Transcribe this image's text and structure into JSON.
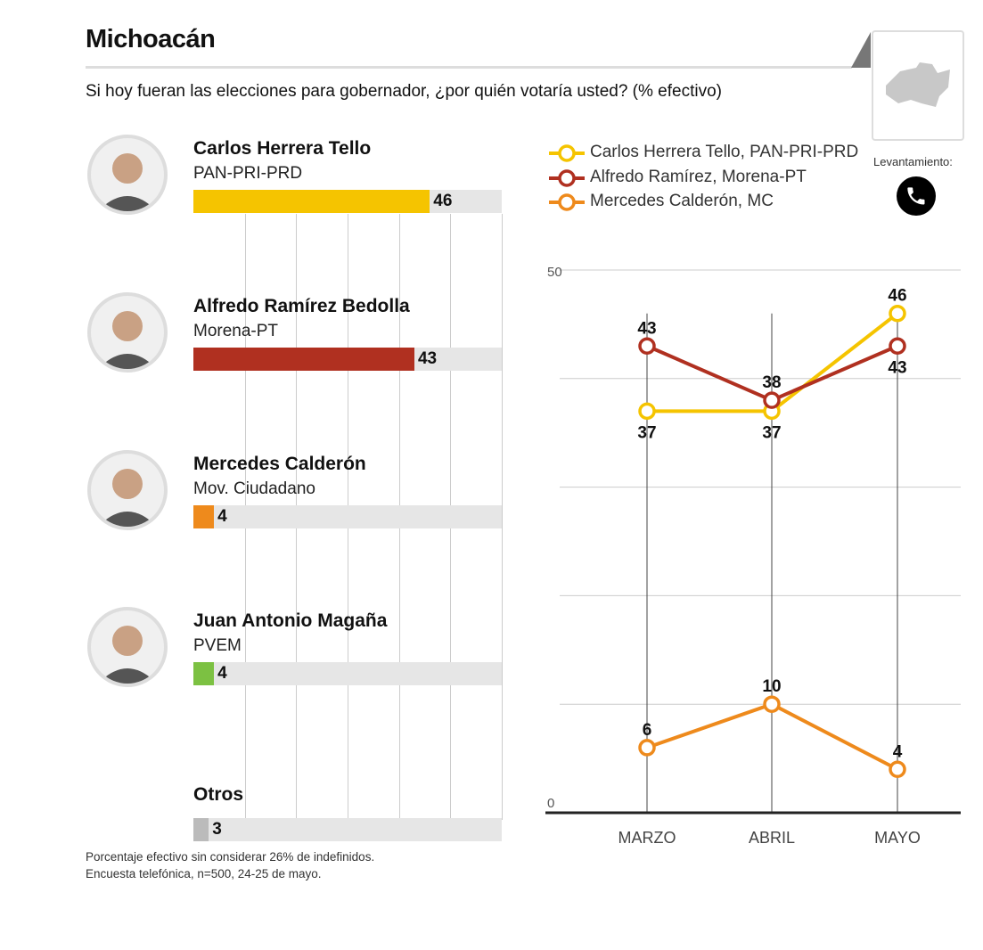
{
  "header": {
    "title": "Michoacán",
    "subtitle": "Si hoy fueran las elecciones para gobernador, ¿por quién votaría usted? (% efectivo)",
    "map_icon": "michoacan-map-icon"
  },
  "colors": {
    "herrera": "#f5c400",
    "ramirez": "#b03020",
    "calderon": "#ee8a1c",
    "magana": "#7cc142",
    "otros": "#bbbbbb",
    "track": "#e6e6e6"
  },
  "chart_data": [
    {
      "type": "bar",
      "orientation": "horizontal",
      "xlim": [
        0,
        60
      ],
      "grid": true,
      "categories": [
        {
          "name": "Carlos Herrera Tello",
          "party": "PAN-PRI-PRD",
          "value": 46,
          "color": "#f5c400"
        },
        {
          "name": "Alfredo Ramírez Bedolla",
          "party": "Morena-PT",
          "value": 43,
          "color": "#b03020"
        },
        {
          "name": "Mercedes Calderón",
          "party": "Mov. Ciudadano",
          "value": 4,
          "color": "#ee8a1c"
        },
        {
          "name": "Juan Antonio Magaña",
          "party": "PVEM",
          "value": 4,
          "color": "#7cc142"
        },
        {
          "name": "Otros",
          "party": "",
          "value": 3,
          "color": "#bbbbbb"
        }
      ]
    },
    {
      "type": "line",
      "categories": [
        "MARZO",
        "ABRIL",
        "MAYO"
      ],
      "ylim": [
        0,
        50
      ],
      "yticks": [
        "0",
        "50"
      ],
      "grid": true,
      "legend": "top",
      "series": [
        {
          "name": "Carlos Herrera Tello, PAN-PRI-PRD",
          "values": [
            37,
            37,
            46
          ],
          "color": "#f5c400"
        },
        {
          "name": "Alfredo Ramírez, Morena-PT",
          "values": [
            43,
            38,
            43
          ],
          "color": "#b03020"
        },
        {
          "name": "Mercedes Calderón, MC",
          "values": [
            6,
            10,
            4
          ],
          "color": "#ee8a1c"
        }
      ]
    }
  ],
  "survey": {
    "label": "Levantamiento:",
    "icon": "phone-icon"
  },
  "notes": [
    "Porcentaje efectivo sin considerar 26% de indefinidos.",
    "Encuesta telefónica, n=500, 24-25 de mayo."
  ]
}
